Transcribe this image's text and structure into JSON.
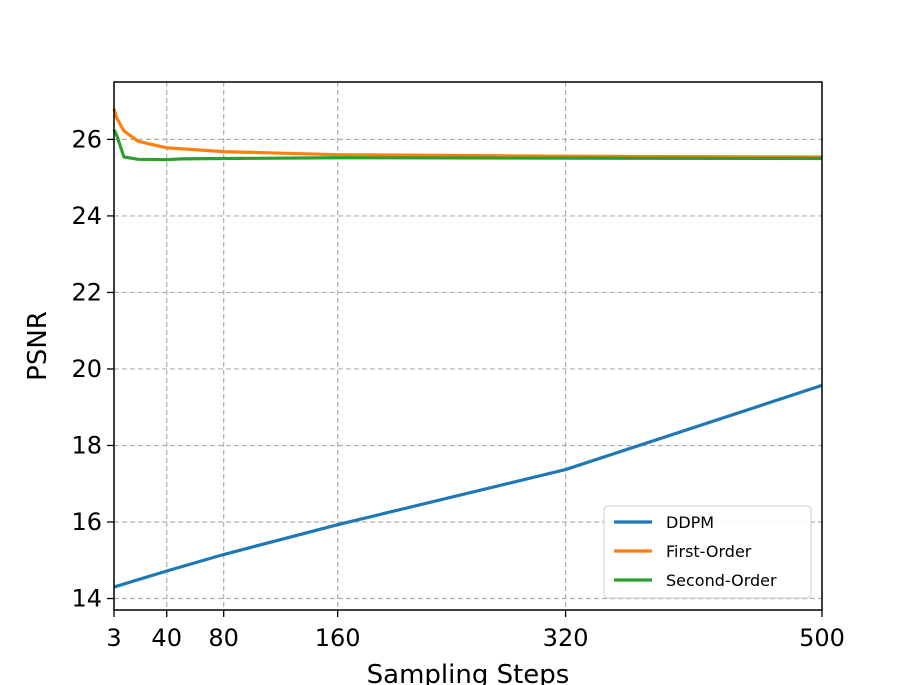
{
  "chart_data": {
    "type": "line",
    "title": "",
    "xlabel": "Sampling Steps",
    "ylabel": "PSNR",
    "xlim": [
      3,
      500
    ],
    "ylim": [
      13.7,
      27.5
    ],
    "x_ticks": [
      3,
      40,
      80,
      160,
      320,
      500
    ],
    "x_tick_labels": [
      "3",
      "40",
      "80",
      "160",
      "320",
      "500"
    ],
    "y_ticks": [
      14,
      16,
      18,
      20,
      22,
      24,
      26
    ],
    "y_tick_labels": [
      "14",
      "16",
      "18",
      "20",
      "22",
      "24",
      "26"
    ],
    "grid": true,
    "legend_position": "bottom-right",
    "series": [
      {
        "name": "DDPM",
        "color": "#1f77b4",
        "x": [
          3,
          40,
          80,
          160,
          320,
          500
        ],
        "y": [
          14.3,
          14.72,
          15.15,
          15.93,
          17.37,
          19.57
        ]
      },
      {
        "name": "First-Order",
        "color": "#ff7f0e",
        "x": [
          3,
          5,
          10,
          20,
          40,
          80,
          160,
          320,
          500
        ],
        "y": [
          26.8,
          26.55,
          26.22,
          25.95,
          25.78,
          25.68,
          25.6,
          25.56,
          25.54
        ]
      },
      {
        "name": "Second-Order",
        "color": "#2ca02c",
        "x": [
          3,
          5,
          10,
          20,
          40,
          50,
          80,
          160,
          320,
          500
        ],
        "y": [
          26.25,
          26.1,
          25.54,
          25.48,
          25.47,
          25.49,
          25.5,
          25.52,
          25.51,
          25.5
        ]
      }
    ]
  }
}
